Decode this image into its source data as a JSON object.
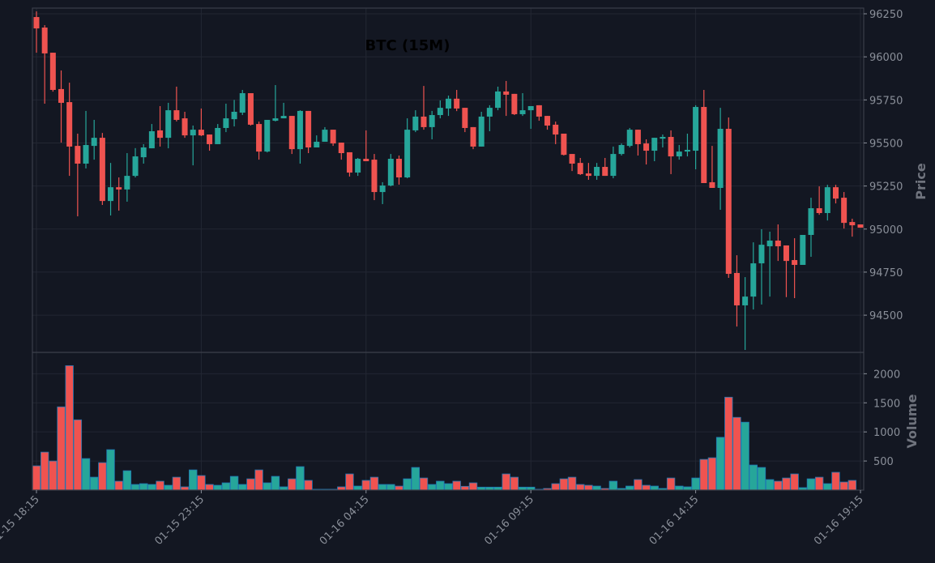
{
  "chart_data": {
    "type": "candlestick",
    "title": "BTC (15M)",
    "ylabel_price": "Price",
    "ylabel_volume": "Volume",
    "colors": {
      "up": "#26a69a",
      "down": "#ef5350",
      "background": "#131722",
      "grid": "#232733",
      "volume_edge": "#1f77b4"
    },
    "grid": true,
    "price_ylim": [
      94284,
      96283
    ],
    "volume_ylim": [
      0,
      2367
    ],
    "price_ticks": [
      94500,
      94750,
      95000,
      95250,
      95500,
      95750,
      96000,
      96250
    ],
    "volume_ticks": [
      500,
      1000,
      1500,
      2000
    ],
    "x_ticks": [
      "01-15 18:15",
      "01-15 23:15",
      "01-16 04:15",
      "01-16 09:15",
      "01-16 14:15",
      "01-16 19:15"
    ],
    "candle_fields": [
      "open",
      "high",
      "low",
      "close",
      "volume"
    ],
    "candles": [
      [
        96231,
        96264,
        96024,
        96165,
        417
      ],
      [
        96170,
        96184,
        95728,
        96020,
        653
      ],
      [
        96024,
        96024,
        95798,
        95808,
        500
      ],
      [
        95813,
        95921,
        95502,
        95733,
        1431
      ],
      [
        95737,
        95850,
        95309,
        95479,
        2139
      ],
      [
        95483,
        95554,
        95074,
        95380,
        1208
      ],
      [
        95380,
        95686,
        95352,
        95488,
        542
      ],
      [
        95483,
        95634,
        95403,
        95530,
        222
      ],
      [
        95530,
        95558,
        95140,
        95163,
        472
      ],
      [
        95163,
        95384,
        95079,
        95243,
        695
      ],
      [
        95243,
        95300,
        95107,
        95230,
        153
      ],
      [
        95230,
        95441,
        95159,
        95309,
        333
      ],
      [
        95309,
        95470,
        95300,
        95422,
        97
      ],
      [
        95417,
        95493,
        95380,
        95474,
        111
      ],
      [
        95469,
        95610,
        95469,
        95568,
        97
      ],
      [
        95573,
        95714,
        95479,
        95530,
        153
      ],
      [
        95530,
        95733,
        95469,
        95690,
        83
      ],
      [
        95690,
        95827,
        95625,
        95634,
        222
      ],
      [
        95643,
        95681,
        95530,
        95544,
        56
      ],
      [
        95544,
        95601,
        95370,
        95577,
        347
      ],
      [
        95577,
        95700,
        95540,
        95544,
        250
      ],
      [
        95549,
        95549,
        95455,
        95493,
        97
      ],
      [
        95493,
        95610,
        95493,
        95587,
        83
      ],
      [
        95587,
        95728,
        95563,
        95643,
        125
      ],
      [
        95638,
        95750,
        95596,
        95681,
        236
      ],
      [
        95676,
        95808,
        95662,
        95789,
        97
      ],
      [
        95789,
        95789,
        95601,
        95606,
        194
      ],
      [
        95610,
        95624,
        95403,
        95450,
        347
      ],
      [
        95450,
        95634,
        95445,
        95634,
        125
      ],
      [
        95629,
        95836,
        95625,
        95643,
        236
      ],
      [
        95643,
        95733,
        95643,
        95657,
        56
      ],
      [
        95657,
        95657,
        95436,
        95464,
        194
      ],
      [
        95464,
        95690,
        95380,
        95686,
        403
      ],
      [
        95686,
        95686,
        95441,
        95474,
        167
      ],
      [
        95474,
        95544,
        95474,
        95507,
        14
      ],
      [
        95507,
        95592,
        95507,
        95577,
        14
      ],
      [
        95577,
        95577,
        95483,
        95497,
        14
      ],
      [
        95502,
        95502,
        95403,
        95441,
        56
      ],
      [
        95446,
        95446,
        95305,
        95328,
        278
      ],
      [
        95328,
        95413,
        95309,
        95408,
        69
      ],
      [
        95408,
        95573,
        95394,
        95394,
        167
      ],
      [
        95403,
        95436,
        95168,
        95215,
        222
      ],
      [
        95215,
        95272,
        95145,
        95253,
        97
      ],
      [
        95253,
        95436,
        95248,
        95408,
        97
      ],
      [
        95408,
        95427,
        95258,
        95300,
        69
      ],
      [
        95300,
        95643,
        95295,
        95577,
        194
      ],
      [
        95573,
        95690,
        95563,
        95653,
        389
      ],
      [
        95653,
        95831,
        95577,
        95592,
        208
      ],
      [
        95592,
        95686,
        95521,
        95662,
        97
      ],
      [
        95662,
        95747,
        95643,
        95704,
        153
      ],
      [
        95700,
        95775,
        95657,
        95757,
        111
      ],
      [
        95757,
        95808,
        95685,
        95700,
        153
      ],
      [
        95704,
        95704,
        95563,
        95587,
        65
      ],
      [
        95592,
        95592,
        95464,
        95479,
        125
      ],
      [
        95479,
        95681,
        95479,
        95653,
        51
      ],
      [
        95653,
        95719,
        95568,
        95704,
        51
      ],
      [
        95704,
        95827,
        95690,
        95799,
        51
      ],
      [
        95799,
        95860,
        95657,
        95780,
        278
      ],
      [
        95785,
        95785,
        95662,
        95667,
        222
      ],
      [
        95667,
        95789,
        95657,
        95690,
        51
      ],
      [
        95690,
        95714,
        95582,
        95714,
        51
      ],
      [
        95719,
        95719,
        95629,
        95653,
        14
      ],
      [
        95657,
        95657,
        95577,
        95601,
        28
      ],
      [
        95606,
        95624,
        95493,
        95549,
        111
      ],
      [
        95554,
        95554,
        95427,
        95431,
        194
      ],
      [
        95436,
        95436,
        95337,
        95380,
        222
      ],
      [
        95384,
        95413,
        95314,
        95319,
        97
      ],
      [
        95323,
        95384,
        95286,
        95309,
        83
      ],
      [
        95309,
        95384,
        95286,
        95361,
        69
      ],
      [
        95361,
        95413,
        95309,
        95309,
        28
      ],
      [
        95309,
        95479,
        95295,
        95436,
        153
      ],
      [
        95436,
        95497,
        95427,
        95488,
        28
      ],
      [
        95483,
        95587,
        95474,
        95577,
        69
      ],
      [
        95577,
        95577,
        95427,
        95493,
        181
      ],
      [
        95497,
        95521,
        95375,
        95455,
        83
      ],
      [
        95455,
        95530,
        95394,
        95530,
        69
      ],
      [
        95525,
        95549,
        95474,
        95535,
        28
      ],
      [
        95535,
        95573,
        95319,
        95422,
        208
      ],
      [
        95422,
        95488,
        95403,
        95450,
        69
      ],
      [
        95450,
        95554,
        95422,
        95460,
        56
      ],
      [
        95455,
        95719,
        95347,
        95709,
        208
      ],
      [
        95709,
        95808,
        95267,
        95267,
        528
      ],
      [
        95272,
        95483,
        95239,
        95239,
        556
      ],
      [
        95239,
        95704,
        95112,
        95582,
        907
      ],
      [
        95582,
        95648,
        94717,
        94740,
        1597
      ],
      [
        94745,
        94848,
        94434,
        94557,
        1250
      ],
      [
        94557,
        94721,
        94298,
        94608,
        1167
      ],
      [
        94608,
        94923,
        94533,
        94801,
        431
      ],
      [
        94801,
        94999,
        94562,
        94909,
        389
      ],
      [
        94900,
        94985,
        94608,
        94933,
        181
      ],
      [
        94933,
        95027,
        94815,
        94900,
        153
      ],
      [
        94905,
        94905,
        94605,
        94815,
        208
      ],
      [
        94820,
        94947,
        94599,
        94792,
        278
      ],
      [
        94792,
        94966,
        94792,
        94966,
        42
      ],
      [
        94966,
        95182,
        94839,
        95121,
        194
      ],
      [
        95121,
        95248,
        95083,
        95093,
        222
      ],
      [
        95093,
        95257,
        95050,
        95243,
        111
      ],
      [
        95243,
        95257,
        95149,
        95177,
        306
      ],
      [
        95182,
        95215,
        95003,
        95036,
        139
      ],
      [
        95041,
        95060,
        94956,
        95022,
        167
      ],
      [
        95027,
        95027,
        95008,
        95008,
        0
      ]
    ]
  }
}
